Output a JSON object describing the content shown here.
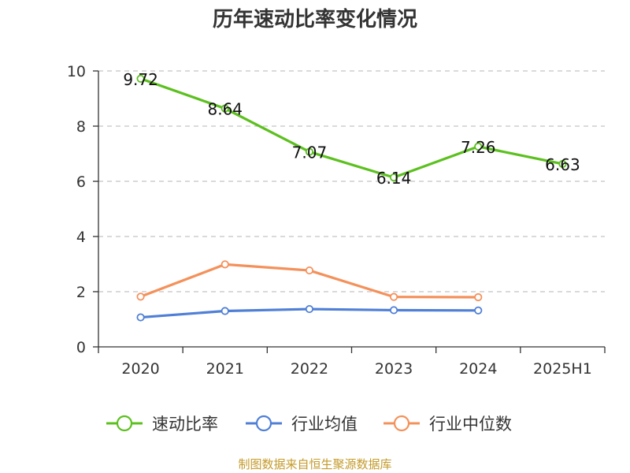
{
  "chart_data": {
    "type": "line",
    "title": "历年速动比率变化情况",
    "categories": [
      "2020",
      "2021",
      "2022",
      "2023",
      "2024",
      "2025H1"
    ],
    "ylim": [
      0,
      10
    ],
    "yticks": [
      "0",
      "2",
      "4",
      "6",
      "8",
      "10"
    ],
    "grid": true,
    "legend_position": "bottom",
    "series": [
      {
        "name": "速动比率",
        "color": "#5cc01f",
        "values": [
          9.72,
          8.64,
          7.07,
          6.14,
          7.26,
          6.63
        ],
        "labels": [
          "9.72",
          "8.64",
          "7.07",
          "6.14",
          "7.26",
          "6.63"
        ]
      },
      {
        "name": "行业均值",
        "color": "#4f7fd6",
        "values": [
          1.07,
          1.3,
          1.37,
          1.33,
          1.32,
          null
        ]
      },
      {
        "name": "行业中位数",
        "color": "#f4915b",
        "values": [
          1.82,
          2.99,
          2.77,
          1.81,
          1.8,
          null
        ]
      }
    ]
  },
  "footer": {
    "source": "制图数据来自恒生聚源数据库",
    "color": "#c49a2a"
  }
}
